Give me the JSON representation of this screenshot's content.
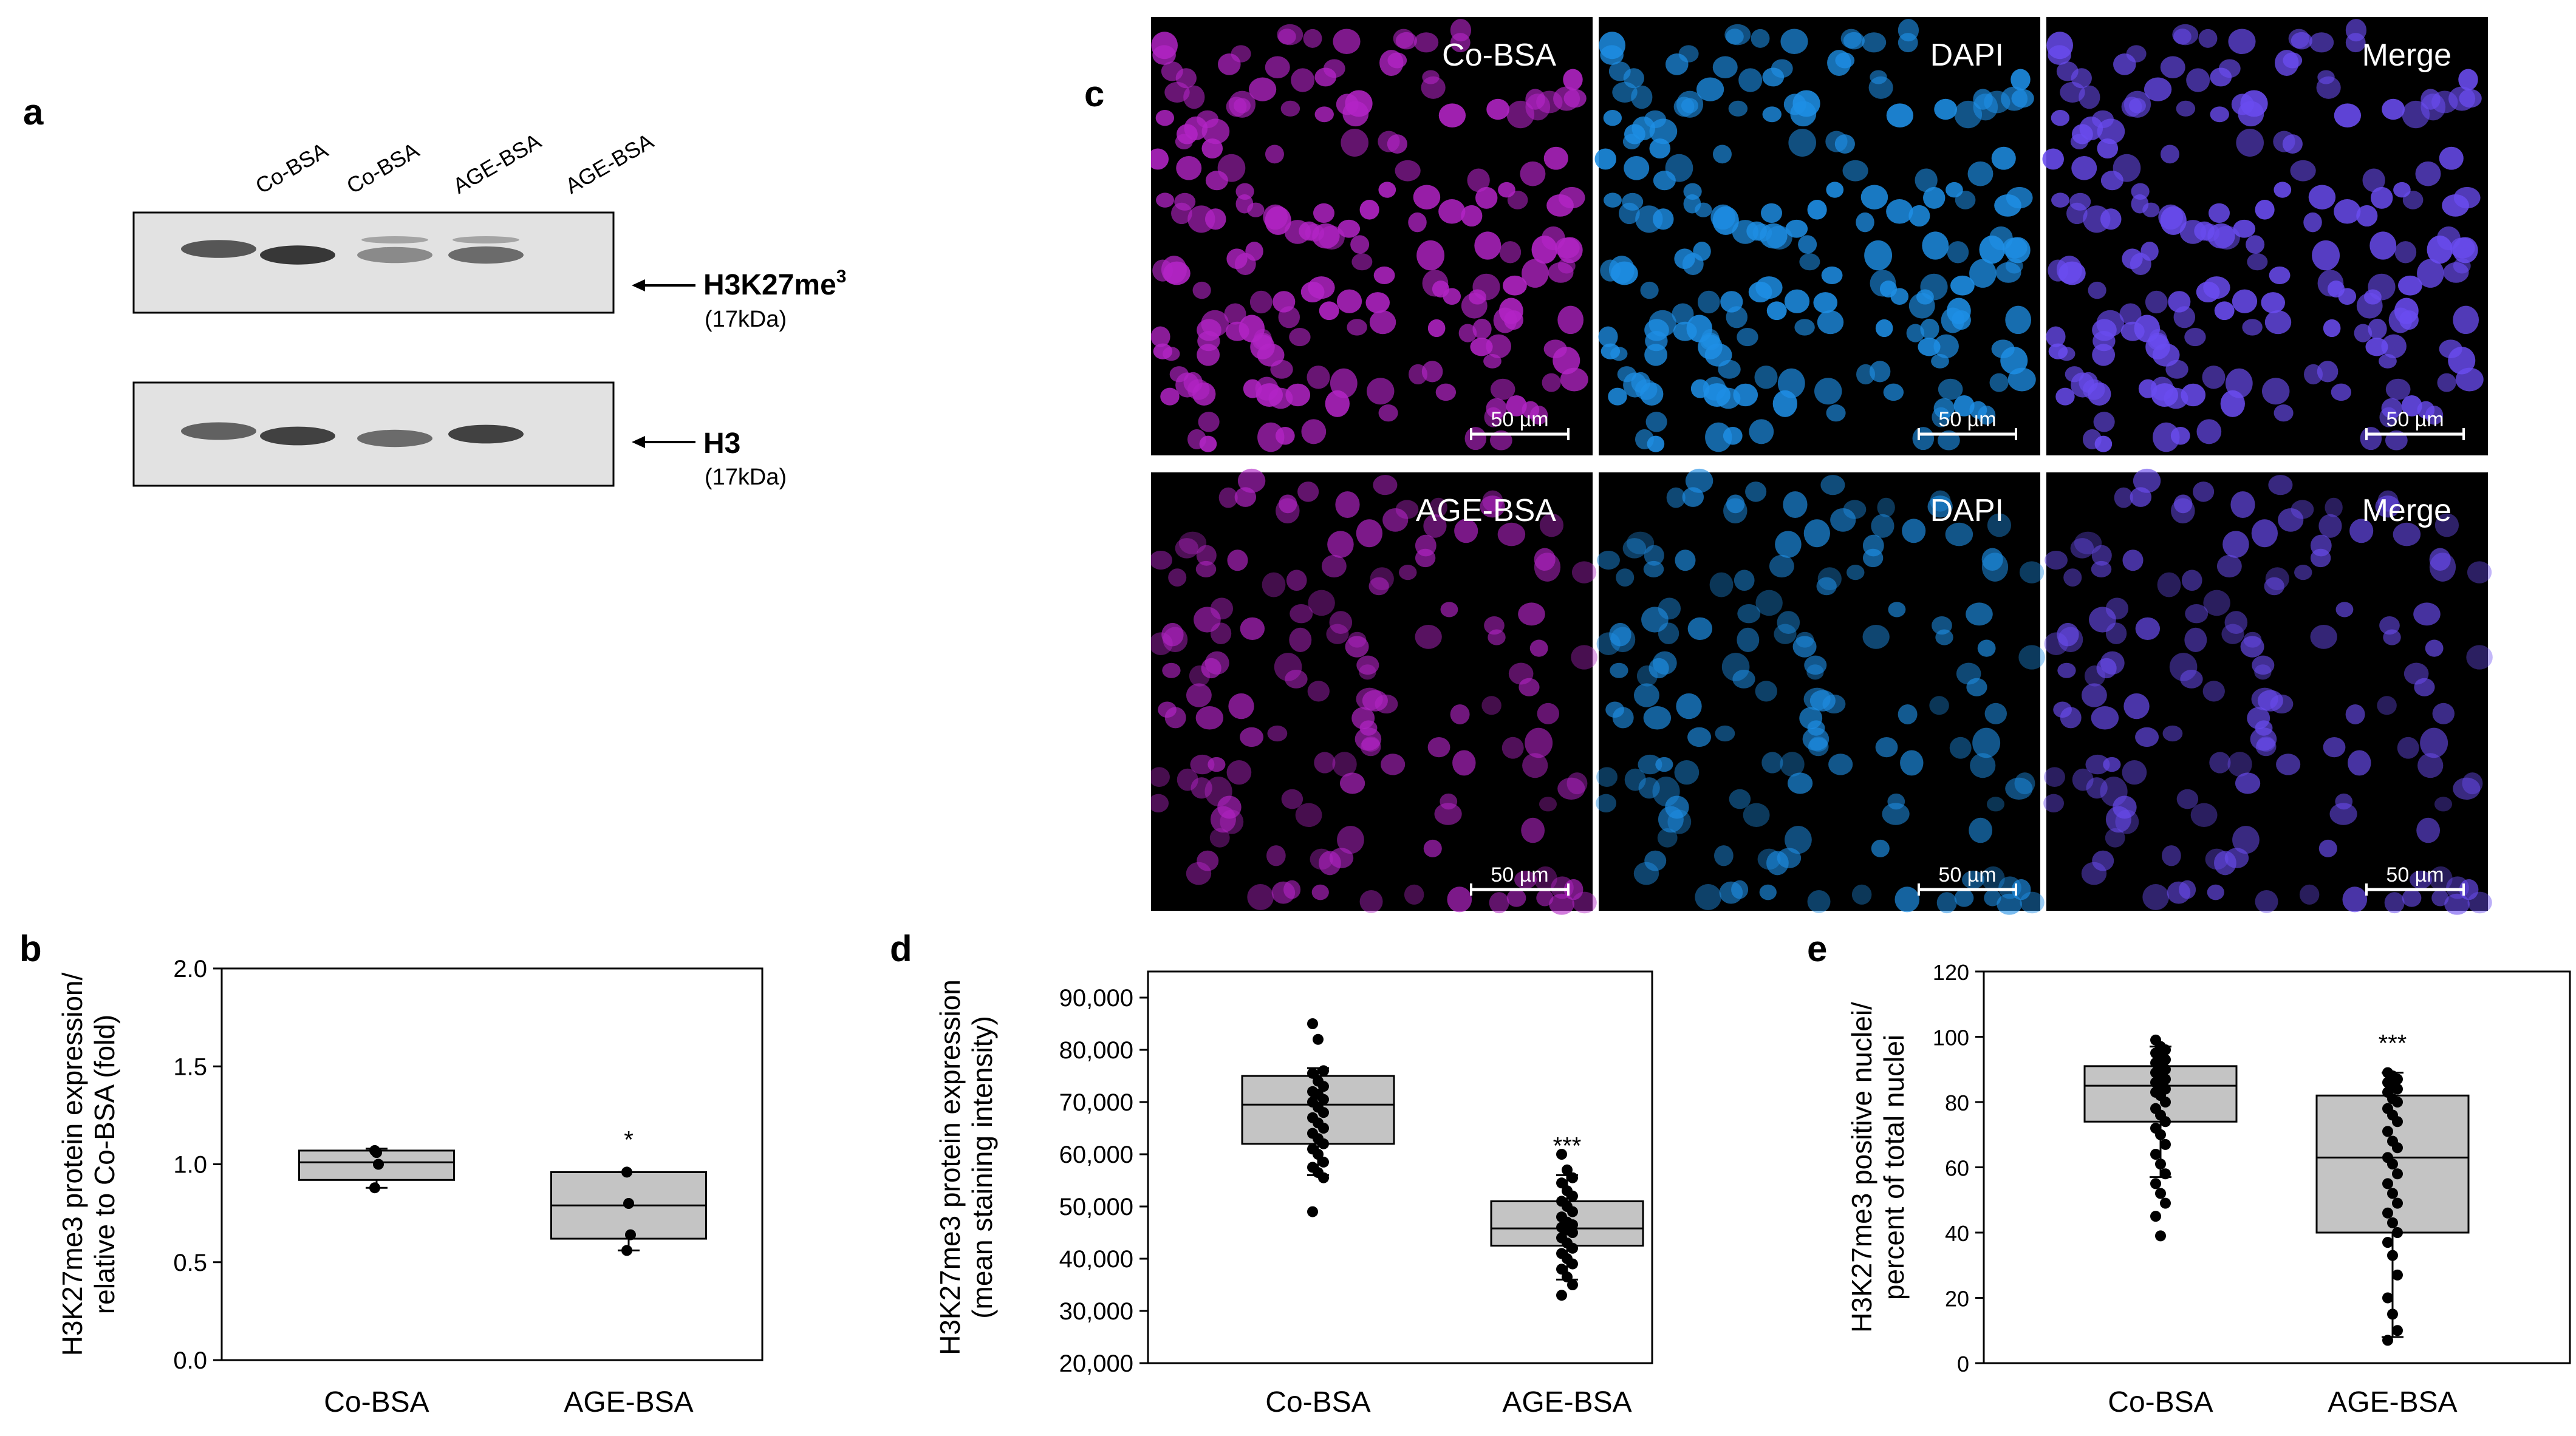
{
  "panel_a": {
    "letter": "a",
    "lanes": [
      "Co-BSA",
      "Co-BSA",
      "AGE-BSA",
      "AGE-BSA"
    ],
    "blots": [
      {
        "label": "H3K27me",
        "label_sup": "3",
        "size": "(17kDa)",
        "band_intensity": [
          0.8,
          0.95,
          0.55,
          0.7
        ]
      },
      {
        "label": "H3",
        "label_sup": "",
        "size": "(17kDa)",
        "band_intensity": [
          0.75,
          0.9,
          0.7,
          0.9
        ]
      }
    ]
  },
  "panel_c": {
    "letter": "c",
    "columns": [
      "stain",
      "dapi",
      "merge"
    ],
    "rows": [
      {
        "labels": [
          "Co-BSA",
          "DAPI",
          "Merge"
        ],
        "scale": "50 µm"
      },
      {
        "labels": [
          "AGE-BSA",
          "DAPI",
          "Merge"
        ],
        "scale": "50 µm"
      }
    ],
    "colors": {
      "stain": "#b324c6",
      "dapi": "#1e8fe6",
      "merge": "#6a4cf0"
    }
  },
  "chart_data": [
    {
      "panel": "b",
      "type": "box",
      "ylabel": [
        "H3K27me3  protein expression/",
        "relative to Co-BSA (fold)"
      ],
      "categories": [
        "Co-BSA",
        "AGE-BSA"
      ],
      "ylim": [
        0.0,
        2.0
      ],
      "yticks": [
        "0.0",
        "0.5",
        "1.0",
        "1.5",
        "2.0"
      ],
      "ytick_values": [
        0.0,
        0.5,
        1.0,
        1.5,
        2.0
      ],
      "boxes": [
        {
          "q1": 0.92,
          "median": 1.01,
          "q3": 1.07,
          "whisker_low": 0.88,
          "whisker_high": 1.08,
          "points": [
            1.07,
            1.06,
            1.0,
            0.88
          ]
        },
        {
          "q1": 0.62,
          "median": 0.79,
          "q3": 0.96,
          "whisker_low": 0.56,
          "whisker_high": 0.96,
          "points": [
            0.96,
            0.8,
            0.64,
            0.56
          ]
        }
      ],
      "annotations": [
        "",
        "*"
      ]
    },
    {
      "panel": "d",
      "type": "box",
      "ylabel": [
        "H3K27me3 protein expression",
        "(mean staining intensity)"
      ],
      "categories": [
        "Co-BSA",
        "AGE-BSA"
      ],
      "ylim": [
        20000,
        95000
      ],
      "yticks": [
        "20,000",
        "30,000",
        "40,000",
        "50,000",
        "60,000",
        "70,000",
        "80,000",
        "90,000"
      ],
      "ytick_values": [
        20000,
        30000,
        40000,
        50000,
        60000,
        70000,
        80000,
        90000
      ],
      "boxes": [
        {
          "q1": 62000,
          "median": 69500,
          "q3": 75000,
          "whisker_low": 56000,
          "whisker_high": 76500,
          "points": [
            85000,
            82000,
            76000,
            75500,
            74000,
            73000,
            72000,
            71500,
            70500,
            70000,
            69000,
            68000,
            67000,
            66000,
            65000,
            64000,
            63000,
            62000,
            61000,
            60000,
            58500,
            57500,
            56500,
            55500,
            49000
          ]
        },
        {
          "q1": 42500,
          "median": 45800,
          "q3": 51000,
          "whisker_low": 36000,
          "whisker_high": 56000,
          "points": [
            60000,
            57000,
            55500,
            54500,
            53000,
            52000,
            51000,
            50000,
            49000,
            48000,
            47000,
            46500,
            46000,
            45500,
            45000,
            44000,
            43000,
            42000,
            41000,
            40000,
            39000,
            38000,
            36500,
            35000,
            33000
          ]
        }
      ],
      "annotations": [
        "",
        "***"
      ]
    },
    {
      "panel": "e",
      "type": "box",
      "ylabel": [
        "H3K27me3 positive nuclei/",
        "percent of total nuclei"
      ],
      "categories": [
        "Co-BSA",
        "AGE-BSA"
      ],
      "ylim": [
        0,
        120
      ],
      "yticks": [
        "0",
        "20",
        "40",
        "60",
        "80",
        "100",
        "120"
      ],
      "ytick_values": [
        0,
        20,
        40,
        60,
        80,
        100,
        120
      ],
      "boxes": [
        {
          "q1": 74,
          "median": 85,
          "q3": 91,
          "whisker_low": 57,
          "whisker_high": 97,
          "points": [
            99,
            97,
            96,
            95,
            94,
            93,
            92,
            91,
            90,
            89,
            88,
            87,
            86,
            85,
            84,
            83,
            82,
            80,
            78,
            76,
            74,
            72,
            70,
            67,
            64,
            61,
            58,
            55,
            52,
            49,
            45,
            39
          ]
        },
        {
          "q1": 40,
          "median": 63,
          "q3": 82,
          "whisker_low": 8,
          "whisker_high": 89,
          "points": [
            89,
            88,
            87,
            86,
            85,
            84,
            83,
            81,
            80,
            78,
            76,
            74,
            71,
            68,
            66,
            63,
            61,
            58,
            55,
            52,
            49,
            46,
            43,
            40,
            37,
            33,
            27,
            20,
            15,
            10,
            7
          ]
        }
      ],
      "annotations": [
        "",
        "***"
      ]
    }
  ]
}
